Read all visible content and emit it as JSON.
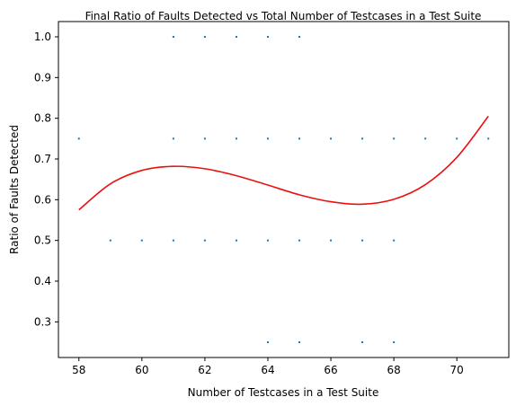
{
  "chart_data": {
    "type": "scatter",
    "title": "Final Ratio of Faults Detected vs Total Number of Testcases in a Test Suite",
    "xlabel": "Number of Testcases in a Test Suite",
    "ylabel": "Ratio of Faults Detected",
    "xlim": [
      57.35,
      71.65
    ],
    "ylim": [
      0.2125,
      1.0375
    ],
    "xticks": [
      "58",
      "60",
      "62",
      "64",
      "66",
      "68",
      "70"
    ],
    "yticks": [
      "0.3",
      "0.4",
      "0.5",
      "0.6",
      "0.7",
      "0.8",
      "0.9",
      "1.0"
    ],
    "grid": false,
    "colors": {
      "points": "#1f77b4",
      "trend": "#e8110f"
    },
    "series": [
      {
        "kind": "scatter",
        "x": [
          61,
          62,
          63,
          64,
          65,
          58,
          61,
          62,
          63,
          64,
          65,
          66,
          67,
          68,
          69,
          70,
          71,
          59,
          60,
          61,
          62,
          63,
          64,
          65,
          66,
          67,
          68,
          64,
          65,
          67,
          68
        ],
        "y": [
          1.0,
          1.0,
          1.0,
          1.0,
          1.0,
          0.75,
          0.75,
          0.75,
          0.75,
          0.75,
          0.75,
          0.75,
          0.75,
          0.75,
          0.75,
          0.75,
          0.75,
          0.5,
          0.5,
          0.5,
          0.5,
          0.5,
          0.5,
          0.5,
          0.5,
          0.5,
          0.5,
          0.25,
          0.25,
          0.25,
          0.25
        ]
      },
      {
        "kind": "line",
        "x": [
          58,
          59,
          60,
          61,
          62,
          63,
          64,
          65,
          66,
          67,
          68,
          69,
          70,
          71
        ],
        "y": [
          0.575,
          0.639,
          0.672,
          0.682,
          0.676,
          0.659,
          0.636,
          0.612,
          0.595,
          0.589,
          0.601,
          0.637,
          0.704,
          0.805
        ]
      }
    ]
  }
}
